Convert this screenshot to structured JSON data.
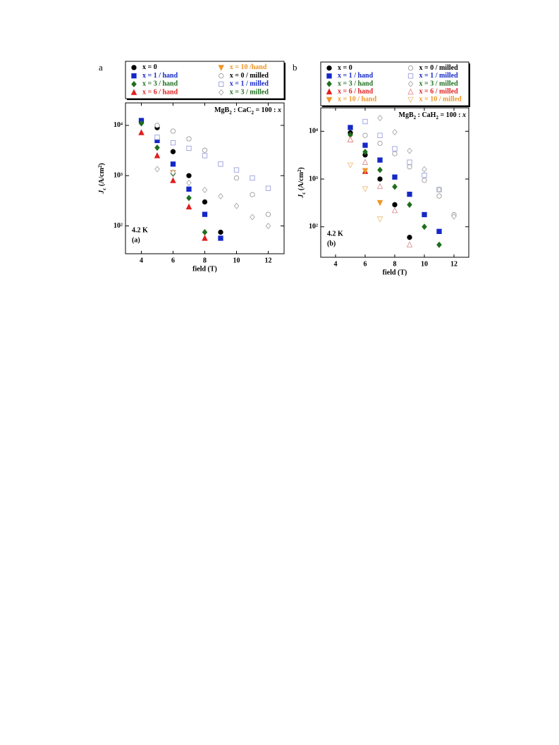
{
  "chart_data": [
    {
      "type": "scatter",
      "panel": "a",
      "panel_label": "(a)",
      "temperature": "4.2 K",
      "annotation": [
        "MgB",
        "2",
        " : CaC",
        "2",
        " = 100 : ",
        "x"
      ],
      "xlabel": "field (T)",
      "ylabel": [
        "J",
        "c",
        " (A/cm",
        "2",
        ")"
      ],
      "xlim": [
        3,
        13
      ],
      "xticks": [
        4,
        6,
        8,
        10,
        12
      ],
      "yscale": "log",
      "ylim": [
        28,
        28000
      ],
      "yticks": [
        {
          "value": 100,
          "label": "10²"
        },
        {
          "value": 1000,
          "label": "10³"
        },
        {
          "value": 10000,
          "label": "10⁴"
        }
      ],
      "series": [
        {
          "name": "x = 0",
          "color": "#000000",
          "text_color": "#000000",
          "marker": "circle",
          "filled": true,
          "x": [
            5,
            6,
            7,
            8,
            9
          ],
          "values": [
            9000,
            3000,
            1000,
            300,
            75
          ]
        },
        {
          "name": "x = 1 / hand",
          "color": "#1428c8",
          "text_color": "#1428c8",
          "marker": "square",
          "filled": true,
          "x": [
            4,
            5,
            6,
            7,
            8,
            9
          ],
          "values": [
            12500,
            5000,
            1700,
            540,
            170,
            57
          ]
        },
        {
          "name": "x = 3 / hand",
          "color": "#1e6e1e",
          "text_color": "#1e6e1e",
          "marker": "diamond",
          "filled": true,
          "x": [
            4,
            5,
            6,
            7,
            8
          ],
          "values": [
            11000,
            3600,
            1100,
            360,
            75
          ]
        },
        {
          "name": "x = 6 / hand",
          "color": "#e01e1e",
          "text_color": "#e01e1e",
          "marker": "triangle-up",
          "filled": true,
          "x": [
            4,
            5,
            6,
            7,
            8
          ],
          "values": [
            7200,
            2500,
            800,
            240,
            57
          ]
        },
        {
          "name": "x = 10 /hand",
          "color": "#f09628",
          "text_color": "#f09628",
          "marker": "triangle-down",
          "filled": true,
          "x": [
            6
          ],
          "values": [
            1150
          ]
        },
        {
          "name": "x = 0 / milled",
          "color": "#9a9a9a",
          "text_color": "#000000",
          "marker": "circle",
          "filled": false,
          "x": [
            5,
            6,
            7,
            8,
            9,
            10,
            11,
            12
          ],
          "values": [
            10000,
            7700,
            5400,
            3200,
            1700,
            900,
            420,
            170
          ]
        },
        {
          "name": "x = 1 / milled",
          "color": "#9aa0dc",
          "text_color": "#1428c8",
          "marker": "square",
          "filled": false,
          "x": [
            5,
            6,
            7,
            8,
            9,
            10,
            11,
            12
          ],
          "values": [
            5800,
            4500,
            3500,
            2500,
            1700,
            1300,
            900,
            560
          ]
        },
        {
          "name": "x = 3 / milled",
          "color": "#a8a8a8",
          "text_color": "#1e6e1e",
          "marker": "diamond",
          "filled": false,
          "x": [
            5,
            6,
            7,
            8,
            9,
            10,
            11,
            12
          ],
          "values": [
            1350,
            1150,
            720,
            520,
            390,
            250,
            150,
            100
          ]
        }
      ]
    },
    {
      "type": "scatter",
      "panel": "b",
      "panel_label": "(b)",
      "temperature": "4.2 K",
      "annotation": [
        "MgB",
        "2",
        " : CaH",
        "2",
        " = 100 : ",
        "x"
      ],
      "xlabel": "field (T)",
      "ylabel": [
        "J",
        "c",
        " (A/cm",
        "2",
        ")"
      ],
      "xlim": [
        3,
        13
      ],
      "xticks": [
        4,
        6,
        8,
        10,
        12
      ],
      "yscale": "log",
      "ylim": [
        23,
        31000
      ],
      "yticks": [
        {
          "value": 100,
          "label": "10²"
        },
        {
          "value": 1000,
          "label": "10³"
        },
        {
          "value": 10000,
          "label": "10⁴"
        }
      ],
      "series": [
        {
          "name": "x = 0",
          "color": "#000000",
          "text_color": "#000000",
          "marker": "circle",
          "filled": true,
          "x": [
            5,
            6,
            7,
            8,
            9
          ],
          "values": [
            9300,
            3200,
            1000,
            290,
            60
          ]
        },
        {
          "name": "x = 1 / hand",
          "color": "#1428c8",
          "text_color": "#1428c8",
          "marker": "square",
          "filled": true,
          "x": [
            5,
            6,
            7,
            8,
            9,
            10,
            11
          ],
          "values": [
            12000,
            5100,
            2500,
            1100,
            480,
            180,
            80
          ]
        },
        {
          "name": "x = 3 / hand",
          "color": "#1e6e1e",
          "text_color": "#1e6e1e",
          "marker": "diamond",
          "filled": true,
          "x": [
            5,
            6,
            7,
            8,
            9,
            10,
            11
          ],
          "values": [
            8400,
            3700,
            1550,
            690,
            290,
            100,
            42
          ]
        },
        {
          "name": "x = 6 / hand",
          "color": "#e01e1e",
          "text_color": "#e01e1e",
          "marker": "triangle-up",
          "filled": true,
          "x": [
            5,
            6
          ],
          "values": [
            6700,
            1450
          ]
        },
        {
          "name": "x = 10 / hand",
          "color": "#f09628",
          "text_color": "#f09628",
          "marker": "triangle-down",
          "filled": true,
          "x": [
            6,
            7
          ],
          "values": [
            1500,
            320
          ]
        },
        {
          "name": "x = 0 / milled",
          "color": "#9a9a9a",
          "text_color": "#000000",
          "marker": "circle",
          "filled": false,
          "x": [
            6,
            7,
            8,
            9,
            10,
            11,
            12
          ],
          "values": [
            8200,
            5600,
            3400,
            1800,
            940,
            440,
            180
          ]
        },
        {
          "name": "x = 1 / milled",
          "color": "#9aa0dc",
          "text_color": "#1428c8",
          "marker": "square",
          "filled": false,
          "x": [
            6,
            7,
            8,
            9,
            10,
            11
          ],
          "values": [
            16000,
            8200,
            4300,
            2250,
            1200,
            600
          ]
        },
        {
          "name": "x = 3 / milled",
          "color": "#a8a8a8",
          "text_color": "#1e6e1e",
          "marker": "diamond",
          "filled": false,
          "x": [
            7,
            8,
            9,
            10,
            11,
            12
          ],
          "values": [
            19000,
            9600,
            3900,
            1600,
            600,
            165
          ]
        },
        {
          "name": "x = 6 / milled",
          "color": "#e09090",
          "text_color": "#e01e1e",
          "marker": "triangle-up",
          "filled": false,
          "x": [
            5,
            6,
            7,
            8,
            9
          ],
          "values": [
            6700,
            2250,
            700,
            220,
            42
          ]
        },
        {
          "name": "x = 10 / milled",
          "color": "#f0c080",
          "text_color": "#f09628",
          "marker": "triangle-down",
          "filled": false,
          "x": [
            5,
            6,
            7
          ],
          "values": [
            1960,
            620,
            145
          ]
        }
      ]
    }
  ]
}
